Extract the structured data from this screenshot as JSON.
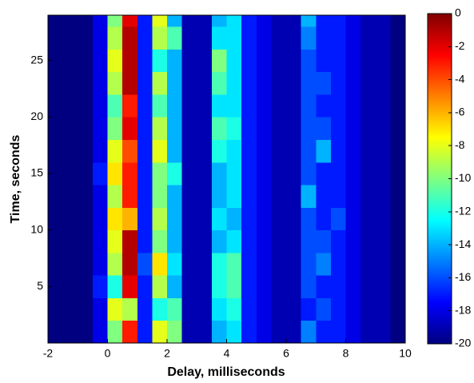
{
  "chart_data": {
    "type": "heatmap",
    "xlabel": "Delay, milliseconds",
    "ylabel": "Time, seconds",
    "colormap": "jet",
    "xlim": [
      -2,
      10
    ],
    "ylim": [
      0,
      29
    ],
    "xticks": [
      -2,
      0,
      2,
      4,
      6,
      8,
      10
    ],
    "yticks": [
      5,
      10,
      15,
      20,
      25
    ],
    "clim": [
      -20,
      0
    ],
    "cticks": [
      0,
      -2,
      -4,
      -6,
      -8,
      -10,
      -12,
      -14,
      -16,
      -18,
      -20
    ],
    "x_bins": [
      -2,
      -1.5,
      -1,
      -0.5,
      0,
      0.5,
      1,
      1.5,
      2,
      2.5,
      3,
      3.5,
      4,
      4.5,
      5,
      5.5,
      6,
      6.5,
      7,
      7.5,
      8,
      8.5,
      9,
      9.5,
      10
    ],
    "y_bins": [
      0,
      2,
      4,
      6,
      8,
      10,
      12,
      14,
      16,
      18,
      20,
      22,
      24,
      26,
      28,
      29
    ],
    "values": [
      [
        -20,
        -20,
        -20,
        -18,
        -10,
        -3,
        -17,
        -8,
        -10,
        -19,
        -19,
        -14,
        -13,
        -17,
        -18,
        -19,
        -19,
        -15,
        -17,
        -17,
        -18,
        -19,
        -19,
        -20
      ],
      [
        -20,
        -20,
        -20,
        -18,
        -8,
        -9,
        -17,
        -12,
        -11,
        -19,
        -19,
        -13,
        -12,
        -17,
        -18,
        -19,
        -19,
        -17,
        -16,
        -17,
        -18,
        -19,
        -19,
        -20
      ],
      [
        -20,
        -20,
        -20,
        -17,
        -12,
        -2,
        -17,
        -9,
        -14,
        -19,
        -19,
        -12,
        -11,
        -17,
        -18,
        -19,
        -19,
        -16,
        -17,
        -17,
        -18,
        -19,
        -19,
        -20
      ],
      [
        -20,
        -20,
        -20,
        -18,
        -9,
        -1,
        -16,
        -7,
        -13,
        -19,
        -19,
        -12,
        -11,
        -17,
        -18,
        -19,
        -19,
        -16,
        -15,
        -17,
        -18,
        -19,
        -19,
        -20
      ],
      [
        -20,
        -20,
        -20,
        -18,
        -8,
        -1,
        -17,
        -10,
        -14,
        -19,
        -19,
        -14,
        -13,
        -17,
        -18,
        -19,
        -19,
        -16,
        -16,
        -17,
        -18,
        -19,
        -19,
        -20
      ],
      [
        -20,
        -20,
        -20,
        -18,
        -7,
        -6,
        -17,
        -9,
        -14,
        -19,
        -19,
        -13,
        -14,
        -17,
        -18,
        -19,
        -19,
        -16,
        -17,
        -16,
        -18,
        -19,
        -19,
        -20
      ],
      [
        -20,
        -20,
        -20,
        -18,
        -9,
        -3,
        -17,
        -10,
        -14,
        -19,
        -19,
        -14,
        -13,
        -17,
        -18,
        -19,
        -19,
        -14,
        -17,
        -17,
        -18,
        -19,
        -19,
        -20
      ],
      [
        -20,
        -20,
        -20,
        -17,
        -7,
        -3,
        -17,
        -10,
        -12,
        -19,
        -19,
        -14,
        -13,
        -17,
        -18,
        -19,
        -19,
        -16,
        -17,
        -17,
        -18,
        -19,
        -19,
        -20
      ],
      [
        -20,
        -20,
        -20,
        -18,
        -8,
        -4,
        -17,
        -8,
        -14,
        -19,
        -19,
        -12,
        -13,
        -17,
        -18,
        -19,
        -19,
        -16,
        -14,
        -17,
        -18,
        -19,
        -19,
        -20
      ],
      [
        -20,
        -20,
        -20,
        -18,
        -10,
        -2,
        -17,
        -9,
        -14,
        -19,
        -19,
        -11,
        -12,
        -17,
        -18,
        -19,
        -19,
        -16,
        -16,
        -17,
        -18,
        -19,
        -19,
        -20
      ],
      [
        -20,
        -20,
        -20,
        -18,
        -11,
        -3,
        -17,
        -11,
        -14,
        -19,
        -19,
        -13,
        -13,
        -17,
        -18,
        -19,
        -19,
        -16,
        -17,
        -17,
        -18,
        -19,
        -19,
        -20
      ],
      [
        -20,
        -20,
        -20,
        -18,
        -9,
        -1,
        -17,
        -9,
        -14,
        -19,
        -19,
        -11,
        -13,
        -17,
        -18,
        -19,
        -19,
        -16,
        -16,
        -17,
        -18,
        -19,
        -19,
        -20
      ],
      [
        -20,
        -20,
        -20,
        -18,
        -8,
        -1,
        -17,
        -12,
        -14,
        -19,
        -19,
        -10,
        -13,
        -17,
        -18,
        -19,
        -19,
        -16,
        -17,
        -17,
        -18,
        -19,
        -19,
        -20
      ],
      [
        -20,
        -20,
        -20,
        -18,
        -9,
        -1,
        -17,
        -9,
        -11,
        -19,
        -19,
        -13,
        -13,
        -17,
        -18,
        -19,
        -19,
        -15,
        -17,
        -17,
        -18,
        -19,
        -19,
        -20
      ],
      [
        -20,
        -20,
        -20,
        -18,
        -10,
        -2,
        -17,
        -8,
        -14,
        -19,
        -19,
        -14,
        -13,
        -17,
        -18,
        -19,
        -19,
        -14,
        -17,
        -17,
        -18,
        -19,
        -19,
        -20
      ]
    ]
  }
}
